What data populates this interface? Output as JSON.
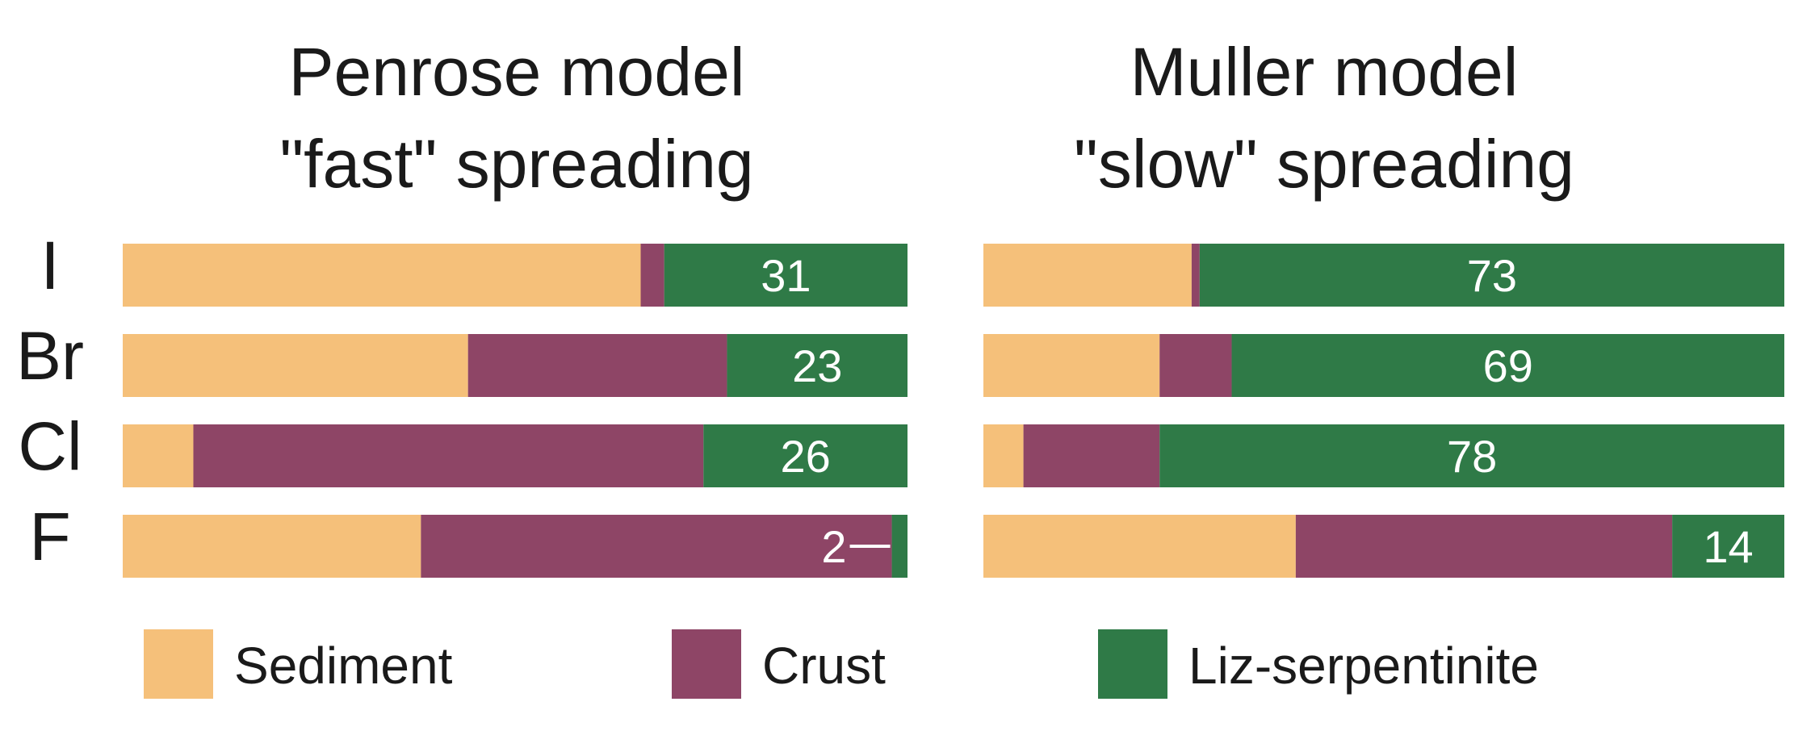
{
  "chart_data": {
    "type": "bar",
    "orientation": "horizontal",
    "stacked": true,
    "normalized_percent": true,
    "categories": [
      "I",
      "Br",
      "Cl",
      "F"
    ],
    "colors": {
      "Sediment": "#f5c07a",
      "Crust": "#8e4566",
      "Liz-serpentinite": "#2f7a47"
    },
    "legend": {
      "placement": "bottom",
      "entries": [
        "Sediment",
        "Crust",
        "Liz-serpentinite"
      ]
    },
    "panels": [
      {
        "title_lines": [
          "Penrose model",
          "\"fast\" spreading"
        ],
        "series": [
          {
            "name": "Sediment",
            "values": [
              66,
              44,
              9,
              38
            ]
          },
          {
            "name": "Crust",
            "values": [
              3,
              33,
              65,
              60
            ]
          },
          {
            "name": "Liz-serpentinite",
            "values": [
              31,
              23,
              26,
              2
            ]
          }
        ],
        "data_labels": [
          "31",
          "23",
          "26",
          "2"
        ]
      },
      {
        "title_lines": [
          "Muller model",
          "\"slow\" spreading"
        ],
        "series": [
          {
            "name": "Sediment",
            "values": [
              26,
              22,
              5,
              39
            ]
          },
          {
            "name": "Crust",
            "values": [
              1,
              9,
              17,
              47
            ]
          },
          {
            "name": "Liz-serpentinite",
            "values": [
              73,
              69,
              78,
              14
            ]
          }
        ],
        "data_labels": [
          "73",
          "69",
          "78",
          "14"
        ]
      }
    ]
  }
}
